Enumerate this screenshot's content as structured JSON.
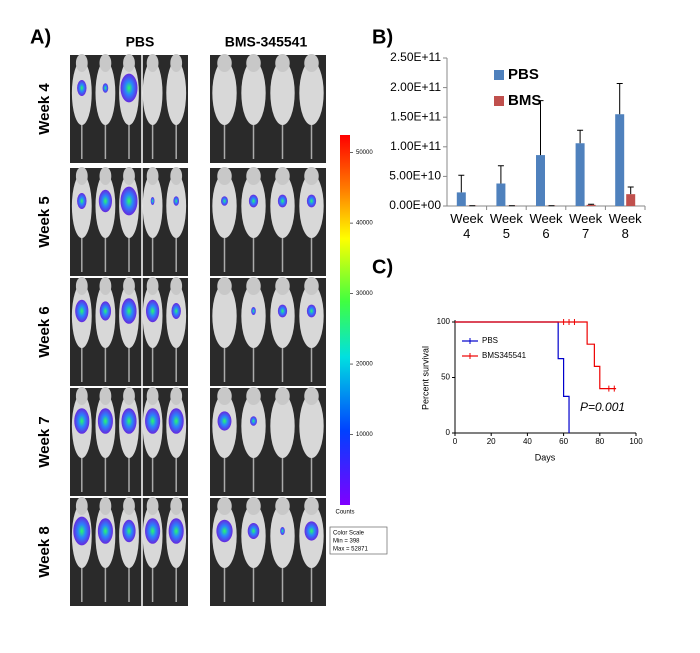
{
  "panel_a": {
    "label": "A)",
    "columns": [
      "PBS",
      "BMS-345541"
    ],
    "rows": [
      "Week 4",
      "Week 5",
      "Week 6",
      "Week 7",
      "Week 8"
    ],
    "colorbar": {
      "ticks": [
        50000,
        40000,
        30000,
        20000,
        10000
      ],
      "lim": [
        0,
        52500
      ],
      "unit": "Counts",
      "legend": [
        "Color Scale",
        "Min = 398",
        "Max = 52871"
      ]
    }
  },
  "chart_data": [
    {
      "type": "bar",
      "panel_label": "B)",
      "categories": [
        "Week 4",
        "Week 5",
        "Week 6",
        "Week 7",
        "Week 8"
      ],
      "series": [
        {
          "name": "PBS",
          "color": "#4f81bd",
          "values": [
            23000000000,
            38000000000,
            86000000000,
            106000000000,
            155000000000
          ],
          "errors": [
            29000000000,
            30000000000,
            92000000000,
            22000000000,
            52000000000
          ]
        },
        {
          "name": "BMS",
          "color": "#c0504d",
          "values": [
            500000000,
            500000000,
            500000000,
            2000000000,
            20000000000
          ],
          "errors": [
            0,
            0,
            0,
            1000000000,
            12000000000
          ]
        }
      ],
      "ylim": [
        0,
        250000000000
      ],
      "yticks": [
        {
          "value": 0,
          "label": "0.00E+00"
        },
        {
          "value": 50000000000,
          "label": "5.00E+10"
        },
        {
          "value": 100000000000,
          "label": "1.00E+11"
        },
        {
          "value": 150000000000,
          "label": "1.50E+11"
        },
        {
          "value": 200000000000,
          "label": "2.00E+11"
        },
        {
          "value": 250000000000,
          "label": "2.50E+11"
        }
      ],
      "legend": "upper left"
    },
    {
      "type": "line",
      "step": true,
      "panel_label": "C)",
      "xlabel": "Days",
      "ylabel": "Percent survival",
      "annotation": "P=0.001",
      "series": [
        {
          "name": "PBS",
          "color": "#0000cc",
          "x": [
            0,
            57,
            60,
            63
          ],
          "values": [
            100,
            67,
            33,
            0
          ],
          "censored_x": [],
          "censored_values": []
        },
        {
          "name": "BMS345541",
          "color": "#ee0000",
          "x": [
            0,
            73,
            77,
            80,
            89
          ],
          "values": [
            100,
            80,
            60,
            40,
            40
          ],
          "censored_x": [
            60,
            63,
            66,
            85,
            88
          ],
          "censored_values": [
            100,
            100,
            100,
            40,
            40
          ]
        }
      ],
      "xlim": [
        0,
        100
      ],
      "xticks": [
        0,
        20,
        40,
        60,
        80,
        100
      ],
      "ylim": [
        0,
        100
      ],
      "yticks": [
        0,
        50,
        100
      ],
      "legend": "upper left"
    }
  ]
}
